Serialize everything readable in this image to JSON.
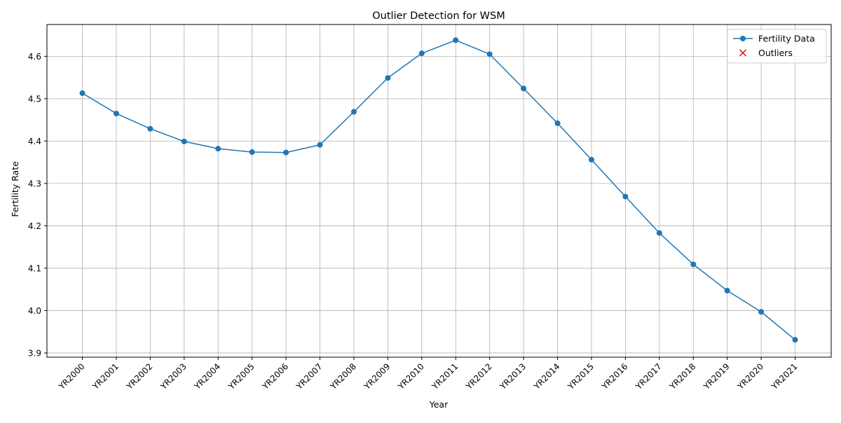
{
  "chart_data": {
    "type": "line",
    "title": "Outlier Detection for WSM",
    "xlabel": "Year",
    "ylabel": "Fertility Rate",
    "categories": [
      "YR2000",
      "YR2001",
      "YR2002",
      "YR2003",
      "YR2004",
      "YR2005",
      "YR2006",
      "YR2007",
      "YR2008",
      "YR2009",
      "YR2010",
      "YR2011",
      "YR2012",
      "YR2013",
      "YR2014",
      "YR2015",
      "YR2016",
      "YR2017",
      "YR2018",
      "YR2019",
      "YR2020",
      "YR2021"
    ],
    "series": [
      {
        "name": "Fertility Data",
        "color": "#1f77b4",
        "marker": "circle",
        "values": [
          4.513,
          4.465,
          4.429,
          4.399,
          4.382,
          4.374,
          4.373,
          4.391,
          4.469,
          4.549,
          4.607,
          4.638,
          4.605,
          4.524,
          4.442,
          4.356,
          4.269,
          4.183,
          4.109,
          4.047,
          3.997,
          3.931
        ]
      }
    ],
    "outliers": {
      "name": "Outliers",
      "color": "#d62728",
      "marker": "x",
      "values": []
    },
    "ylim": [
      3.89,
      4.675
    ],
    "yticks": [
      3.9,
      4.0,
      4.1,
      4.2,
      4.3,
      4.4,
      4.5,
      4.6
    ],
    "grid": true,
    "legend_position": "top-right"
  }
}
